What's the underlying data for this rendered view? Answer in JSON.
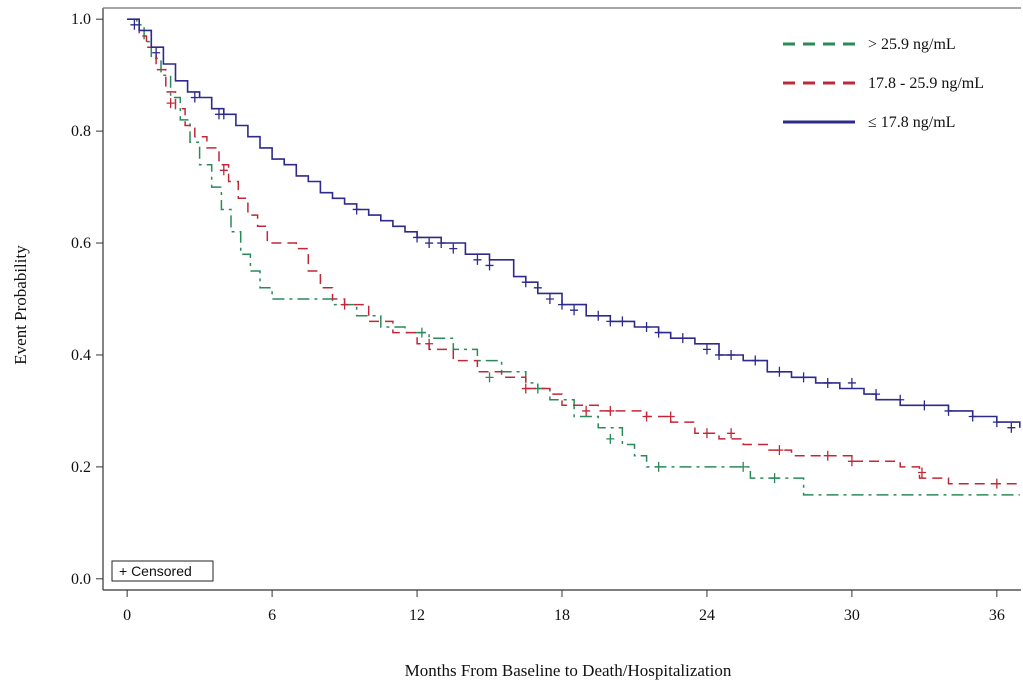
{
  "chart_data": {
    "type": "line",
    "step": true,
    "xlabel": "Months From Baseline to Death/Hospitalization",
    "ylabel": "Event Probability",
    "xlim": [
      -1,
      37
    ],
    "ylim": [
      -0.02,
      1.02
    ],
    "x_ticks": [
      0,
      6,
      12,
      18,
      24,
      30,
      36
    ],
    "y_ticks": [
      0.0,
      0.2,
      0.4,
      0.6,
      0.8,
      1.0
    ],
    "y_tick_labels": [
      "0.0",
      "0.2",
      "0.4",
      "0.6",
      "0.8",
      "1.0"
    ],
    "grid": false,
    "legend_position": "top-right",
    "censor_label": "+ Censored",
    "series": [
      {
        "name": "> 25.9 ng/mL",
        "color": "#2a8a5a",
        "dash": "dashdot",
        "points": [
          [
            0,
            1.0
          ],
          [
            0.4,
            0.99
          ],
          [
            0.7,
            0.96
          ],
          [
            1.0,
            0.93
          ],
          [
            1.4,
            0.9
          ],
          [
            1.8,
            0.86
          ],
          [
            2.2,
            0.82
          ],
          [
            2.6,
            0.78
          ],
          [
            3.0,
            0.74
          ],
          [
            3.5,
            0.7
          ],
          [
            3.9,
            0.66
          ],
          [
            4.3,
            0.62
          ],
          [
            4.7,
            0.58
          ],
          [
            5.1,
            0.55
          ],
          [
            5.5,
            0.52
          ],
          [
            6.0,
            0.5
          ],
          [
            6.5,
            0.5
          ],
          [
            7.0,
            0.5
          ],
          [
            7.5,
            0.5
          ],
          [
            8.5,
            0.49
          ],
          [
            9.5,
            0.47
          ],
          [
            10.5,
            0.45
          ],
          [
            11.5,
            0.44
          ],
          [
            12.5,
            0.43
          ],
          [
            13.5,
            0.41
          ],
          [
            14.5,
            0.39
          ],
          [
            15.5,
            0.37
          ],
          [
            16.5,
            0.35
          ],
          [
            17.0,
            0.34
          ],
          [
            17.5,
            0.32
          ],
          [
            18.5,
            0.29
          ],
          [
            19.5,
            0.27
          ],
          [
            20.5,
            0.24
          ],
          [
            21.0,
            0.22
          ],
          [
            21.5,
            0.2
          ],
          [
            22.5,
            0.2
          ],
          [
            24.0,
            0.2
          ],
          [
            25.5,
            0.2
          ],
          [
            25.8,
            0.18
          ],
          [
            27.0,
            0.18
          ],
          [
            28.0,
            0.15
          ],
          [
            30.0,
            0.15
          ],
          [
            34.0,
            0.15
          ],
          [
            37.0,
            0.15
          ]
        ],
        "censored": [
          [
            12.2,
            0.44
          ],
          [
            15.0,
            0.36
          ],
          [
            17.0,
            0.34
          ],
          [
            20.0,
            0.25
          ],
          [
            22.0,
            0.2
          ],
          [
            25.5,
            0.2
          ],
          [
            26.8,
            0.18
          ]
        ]
      },
      {
        "name": "17.8 - 25.9 ng/mL",
        "color": "#c02838",
        "dash": "dash",
        "points": [
          [
            0,
            1.0
          ],
          [
            0.5,
            0.97
          ],
          [
            0.8,
            0.95
          ],
          [
            1.2,
            0.91
          ],
          [
            1.6,
            0.87
          ],
          [
            2.0,
            0.84
          ],
          [
            2.4,
            0.81
          ],
          [
            2.8,
            0.79
          ],
          [
            3.3,
            0.77
          ],
          [
            3.8,
            0.74
          ],
          [
            4.2,
            0.71
          ],
          [
            4.6,
            0.68
          ],
          [
            5.0,
            0.65
          ],
          [
            5.4,
            0.63
          ],
          [
            5.8,
            0.6
          ],
          [
            6.5,
            0.6
          ],
          [
            7.0,
            0.59
          ],
          [
            7.5,
            0.55
          ],
          [
            8.0,
            0.52
          ],
          [
            8.5,
            0.5
          ],
          [
            9.0,
            0.49
          ],
          [
            10.0,
            0.46
          ],
          [
            11.0,
            0.44
          ],
          [
            12.0,
            0.42
          ],
          [
            12.5,
            0.41
          ],
          [
            13.5,
            0.39
          ],
          [
            14.5,
            0.37
          ],
          [
            15.5,
            0.36
          ],
          [
            16.5,
            0.34
          ],
          [
            17.5,
            0.33
          ],
          [
            18.0,
            0.31
          ],
          [
            19.5,
            0.3
          ],
          [
            20.5,
            0.3
          ],
          [
            21.5,
            0.29
          ],
          [
            22.5,
            0.28
          ],
          [
            23.5,
            0.26
          ],
          [
            24.5,
            0.25
          ],
          [
            25.5,
            0.24
          ],
          [
            26.5,
            0.23
          ],
          [
            27.5,
            0.22
          ],
          [
            29.0,
            0.22
          ],
          [
            30.0,
            0.21
          ],
          [
            32.0,
            0.2
          ],
          [
            32.8,
            0.18
          ],
          [
            34.0,
            0.17
          ],
          [
            37.0,
            0.17
          ]
        ],
        "censored": [
          [
            1.8,
            0.85
          ],
          [
            4.0,
            0.73
          ],
          [
            9.0,
            0.49
          ],
          [
            12.5,
            0.42
          ],
          [
            16.5,
            0.34
          ],
          [
            19.0,
            0.3
          ],
          [
            20.0,
            0.3
          ],
          [
            21.5,
            0.29
          ],
          [
            22.5,
            0.29
          ],
          [
            24.0,
            0.26
          ],
          [
            25.0,
            0.26
          ],
          [
            27.0,
            0.23
          ],
          [
            29.0,
            0.22
          ],
          [
            30.0,
            0.21
          ],
          [
            32.9,
            0.19
          ],
          [
            36.0,
            0.17
          ]
        ]
      },
      {
        "name": "≤ 17.8 ng/mL",
        "color": "#2e2a8c",
        "dash": "solid",
        "points": [
          [
            0,
            1.0
          ],
          [
            0.5,
            0.98
          ],
          [
            1.0,
            0.95
          ],
          [
            1.5,
            0.92
          ],
          [
            2.0,
            0.89
          ],
          [
            2.5,
            0.87
          ],
          [
            3.0,
            0.86
          ],
          [
            3.5,
            0.84
          ],
          [
            4.0,
            0.83
          ],
          [
            4.5,
            0.81
          ],
          [
            5.0,
            0.79
          ],
          [
            5.5,
            0.77
          ],
          [
            6.0,
            0.75
          ],
          [
            6.5,
            0.74
          ],
          [
            7.0,
            0.72
          ],
          [
            7.5,
            0.71
          ],
          [
            8.0,
            0.69
          ],
          [
            8.5,
            0.68
          ],
          [
            9.0,
            0.67
          ],
          [
            9.5,
            0.66
          ],
          [
            10.0,
            0.65
          ],
          [
            10.5,
            0.64
          ],
          [
            11.0,
            0.63
          ],
          [
            11.5,
            0.62
          ],
          [
            12.0,
            0.61
          ],
          [
            13.0,
            0.6
          ],
          [
            14.0,
            0.58
          ],
          [
            15.0,
            0.57
          ],
          [
            16.0,
            0.54
          ],
          [
            16.5,
            0.53
          ],
          [
            17.0,
            0.51
          ],
          [
            18.0,
            0.49
          ],
          [
            19.0,
            0.47
          ],
          [
            20.0,
            0.46
          ],
          [
            21.0,
            0.45
          ],
          [
            22.0,
            0.44
          ],
          [
            22.5,
            0.43
          ],
          [
            23.5,
            0.42
          ],
          [
            24.5,
            0.4
          ],
          [
            25.5,
            0.39
          ],
          [
            26.5,
            0.37
          ],
          [
            27.5,
            0.36
          ],
          [
            28.5,
            0.35
          ],
          [
            29.5,
            0.34
          ],
          [
            30.5,
            0.33
          ],
          [
            31.0,
            0.32
          ],
          [
            32.0,
            0.31
          ],
          [
            33.0,
            0.31
          ],
          [
            34.0,
            0.3
          ],
          [
            35.0,
            0.29
          ],
          [
            36.0,
            0.28
          ],
          [
            37.0,
            0.27
          ]
        ],
        "censored": [
          [
            0.3,
            0.99
          ],
          [
            1.2,
            0.94
          ],
          [
            2.8,
            0.86
          ],
          [
            3.8,
            0.83
          ],
          [
            4.0,
            0.83
          ],
          [
            9.5,
            0.66
          ],
          [
            12.0,
            0.61
          ],
          [
            12.5,
            0.6
          ],
          [
            13.0,
            0.6
          ],
          [
            13.5,
            0.59
          ],
          [
            14.5,
            0.57
          ],
          [
            15.0,
            0.56
          ],
          [
            16.5,
            0.53
          ],
          [
            17.0,
            0.52
          ],
          [
            17.5,
            0.5
          ],
          [
            18.0,
            0.49
          ],
          [
            18.5,
            0.48
          ],
          [
            19.5,
            0.47
          ],
          [
            20.0,
            0.46
          ],
          [
            20.5,
            0.46
          ],
          [
            21.5,
            0.45
          ],
          [
            22.0,
            0.44
          ],
          [
            23.0,
            0.43
          ],
          [
            24.0,
            0.41
          ],
          [
            24.5,
            0.4
          ],
          [
            25.0,
            0.4
          ],
          [
            26.0,
            0.39
          ],
          [
            27.0,
            0.37
          ],
          [
            28.0,
            0.36
          ],
          [
            29.0,
            0.35
          ],
          [
            30.0,
            0.35
          ],
          [
            31.0,
            0.33
          ],
          [
            32.0,
            0.32
          ],
          [
            33.0,
            0.31
          ],
          [
            34.0,
            0.3
          ],
          [
            35.0,
            0.29
          ],
          [
            36.0,
            0.28
          ],
          [
            36.6,
            0.27
          ]
        ]
      }
    ]
  }
}
